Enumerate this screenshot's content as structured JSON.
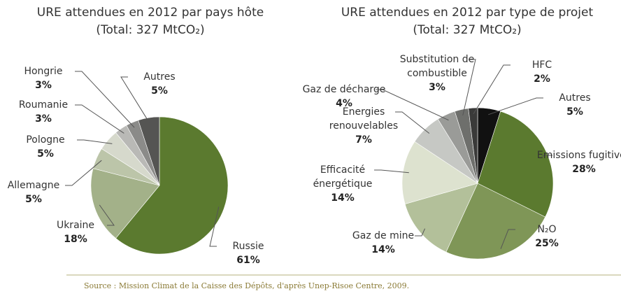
{
  "chart_data": [
    {
      "type": "pie",
      "title": "URE attendues en 2012 par pays hôte",
      "subtitle": "(Total: 327 MtCO₂)",
      "categories": [
        "Russie",
        "Ukraine",
        "Allemagne",
        "Pologne",
        "Roumanie",
        "Hongrie",
        "Autres"
      ],
      "values": [
        61,
        18,
        5,
        5,
        3,
        3,
        5
      ],
      "value_labels": [
        "61%",
        "18%",
        "5%",
        "5%",
        "3%",
        "3%",
        "5%"
      ],
      "colors": [
        "#5b7a2f",
        "#a3b189",
        "#bcc5a9",
        "#d6d9cc",
        "#b9b9b6",
        "#8b8b89",
        "#555553"
      ]
    },
    {
      "type": "pie",
      "title": "URE attendues en 2012 par type de projet",
      "subtitle": "(Total: 327 MtCO₂)",
      "categories": [
        "Autres",
        "Emissions fugitives",
        "N₂O",
        "Gaz de mine",
        "Efficacité énergétique",
        "Energies renouvelables",
        "Gaz de décharge",
        "Substitution de combustible",
        "HFC"
      ],
      "values": [
        5,
        28,
        25,
        14,
        14,
        7,
        4,
        3,
        2
      ],
      "value_labels": [
        "5%",
        "28%",
        "25%",
        "14%",
        "14%",
        "7%",
        "4%",
        "3%",
        "2%"
      ],
      "colors": [
        "#111111",
        "#5b7a2f",
        "#7f9657",
        "#b3c09a",
        "#dde2cf",
        "#c6c8c4",
        "#9a9b98",
        "#6e6f6c",
        "#3a3a39"
      ]
    }
  ],
  "source": "Source : Mission Climat de la Caisse des Dépôts, d'après Unep-Risoe Centre, 2009."
}
